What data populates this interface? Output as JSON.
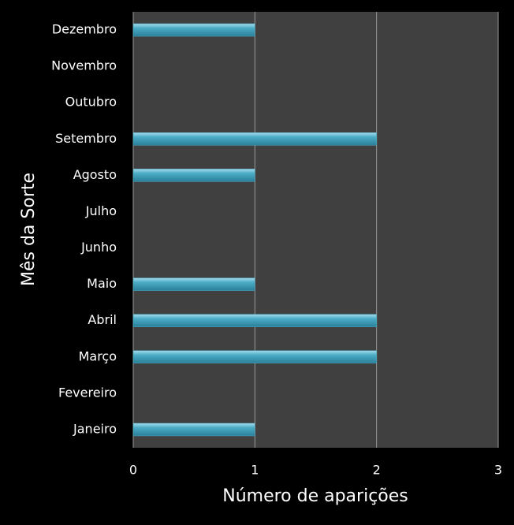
{
  "chart_data": {
    "type": "hbar",
    "x_label": "Número de aparições",
    "y_label": "Mês da Sorte",
    "categories": [
      "Janeiro",
      "Fevereiro",
      "Março",
      "Abril",
      "Maio",
      "Junho",
      "Julho",
      "Agosto",
      "Setembro",
      "Outubro",
      "Novembro",
      "Dezembro"
    ],
    "values": [
      1,
      0,
      2,
      2,
      1,
      0,
      0,
      1,
      2,
      0,
      0,
      1
    ],
    "color": "#4bacc6",
    "xlim": [
      0,
      3
    ],
    "xticks": [
      0,
      1,
      2,
      3
    ],
    "grid": true
  }
}
